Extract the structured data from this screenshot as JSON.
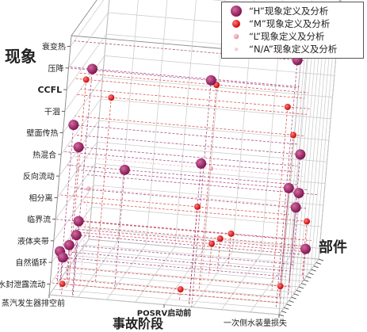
{
  "chart_data": {
    "type": "scatter",
    "axis_titles": {
      "phenomenon": "现象",
      "stage": "事故阶段",
      "component": "部件"
    },
    "phenomenon_categories": [
      "水封泄露流动",
      "自然循环",
      "液体夹带",
      "临界流",
      "相分离",
      "反向流动",
      "热混合",
      "壁面传热",
      "干涸",
      "CCFL",
      "压降",
      "衰变热"
    ],
    "stage_categories": [
      "蒸汽发生器排空前",
      "POSRV启动前",
      "一次侧水装量损失"
    ],
    "legend": [
      {
        "label": "“H”现象定义及分析",
        "color": "#8b1a5c"
      },
      {
        "label": "“M”现象定义及分析",
        "color": "#dd1111"
      },
      {
        "label": "“L”现象定义及分析",
        "color": "#e89aa8"
      },
      {
        "label": "“N/A”现象定义及分析",
        "color": "#f2c6cf"
      }
    ],
    "points": [
      {
        "phen": "水封泄露流动",
        "stage": 0.05,
        "depth": 0.02,
        "rank": "M"
      },
      {
        "phen": "水封泄露流动",
        "stage": 0.55,
        "depth": 0.1,
        "rank": "M"
      },
      {
        "phen": "水封泄露流动",
        "stage": 0.95,
        "depth": 0.3,
        "rank": "M"
      },
      {
        "phen": "自然循环",
        "stage": 0.03,
        "depth": 0.1,
        "rank": "H"
      },
      {
        "phen": "自然循环",
        "stage": 0.0,
        "depth": 0.2,
        "rank": "H"
      },
      {
        "phen": "自然循环",
        "stage": 0.02,
        "depth": 0.32,
        "rank": "H"
      },
      {
        "phen": "自然循环",
        "stage": 0.02,
        "depth": 0.5,
        "rank": "H"
      },
      {
        "phen": "自然循环",
        "stage": 0.6,
        "depth": 0.55,
        "rank": "M"
      },
      {
        "phen": "自然循环",
        "stage": 0.62,
        "depth": 0.65,
        "rank": "M"
      },
      {
        "phen": "自然循环",
        "stage": 0.65,
        "depth": 0.75,
        "rank": "M"
      },
      {
        "phen": "自然循环",
        "stage": 1.0,
        "depth": 0.6,
        "rank": "H"
      },
      {
        "phen": "液体夹带",
        "stage": 0.98,
        "depth": 0.7,
        "rank": "M"
      },
      {
        "phen": "临界流",
        "stage": 0.1,
        "depth": 0.0,
        "rank": "H"
      },
      {
        "phen": "临界流",
        "stage": 0.95,
        "depth": 0.55,
        "rank": "H"
      },
      {
        "phen": "临界流",
        "stage": 0.92,
        "depth": 0.8,
        "rank": "H"
      },
      {
        "phen": "相分离",
        "stage": 0.6,
        "depth": 0.05,
        "rank": "M"
      },
      {
        "phen": "相分离",
        "stage": 0.92,
        "depth": 0.5,
        "rank": "H"
      },
      {
        "phen": "相分离",
        "stage": 0.1,
        "depth": 0.2,
        "rank": "L"
      },
      {
        "phen": "反向流动",
        "stage": 0.25,
        "depth": 0.2,
        "rank": "H"
      },
      {
        "phen": "反向流动",
        "stage": 0.6,
        "depth": 0.35,
        "rank": "L"
      },
      {
        "phen": "热混合",
        "stage": 0.05,
        "depth": 0.15,
        "rank": "H"
      },
      {
        "phen": "热混合",
        "stage": 0.6,
        "depth": 0.05,
        "rank": "H"
      },
      {
        "phen": "热混合",
        "stage": 0.98,
        "depth": 0.35,
        "rank": "H"
      },
      {
        "phen": "壁面传热",
        "stage": 0.02,
        "depth": 0.15,
        "rank": "H"
      },
      {
        "phen": "壁面传热",
        "stage": 0.95,
        "depth": 0.3,
        "rank": "M"
      },
      {
        "phen": "干涸",
        "stage": 0.15,
        "depth": 0.3,
        "rank": "M"
      },
      {
        "phen": "干涸",
        "stage": 0.9,
        "depth": 0.4,
        "rank": "M"
      },
      {
        "phen": "CCFL",
        "stage": 0.05,
        "depth": 0.2,
        "rank": "M"
      },
      {
        "phen": "CCFL",
        "stage": 0.6,
        "depth": 0.3,
        "rank": "M"
      },
      {
        "phen": "压降",
        "stage": 0.1,
        "depth": 0.02,
        "rank": "H"
      },
      {
        "phen": "压降",
        "stage": 0.62,
        "depth": 0.0,
        "rank": "H"
      },
      {
        "phen": "衰变热",
        "stage": 0.97,
        "depth": 0.1,
        "rank": "H"
      }
    ]
  }
}
